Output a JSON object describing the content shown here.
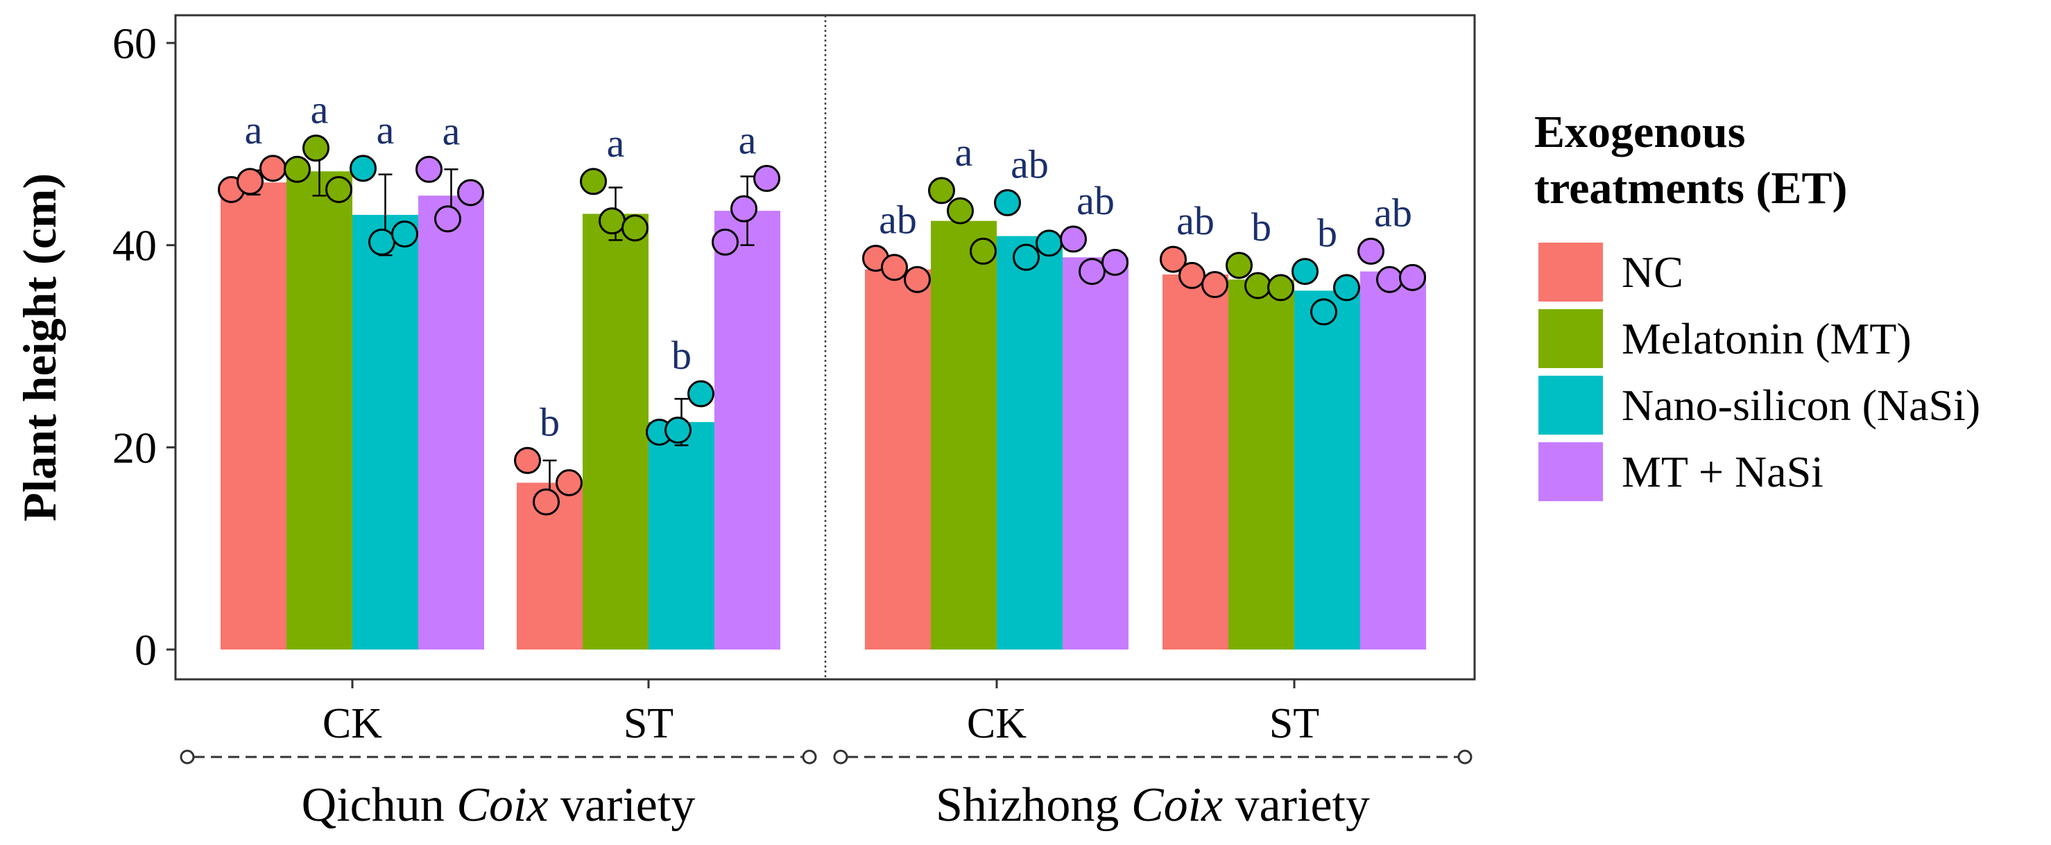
{
  "chart_data": {
    "type": "bar",
    "ylabel": "Plant height (cm)",
    "ylim": [
      0,
      60
    ],
    "yticks": [
      0,
      20,
      40,
      60
    ],
    "varieties": [
      {
        "label_prefix": "Qichun ",
        "label_italic": "Coix",
        "label_suffix": " variety"
      },
      {
        "label_prefix": "Shizhong ",
        "label_italic": "Coix",
        "label_suffix": " variety"
      }
    ],
    "categories": [
      "CK",
      "ST",
      "CK",
      "ST"
    ],
    "legend": {
      "title_line1": "Exogenous",
      "title_line2": "treatments (ET)",
      "placement": "right"
    },
    "series": [
      {
        "name": "NC",
        "color": "#F8766D",
        "values": [
          46.2,
          16.5,
          37.6,
          37.1
        ],
        "errors": [
          1.2,
          2.2,
          0,
          0
        ],
        "labels": [
          "a",
          "b",
          "ab",
          "ab"
        ],
        "points": [
          [
            45.5,
            46.3,
            47.6
          ],
          [
            18.7,
            14.6,
            16.5
          ],
          [
            38.7,
            37.8,
            36.6
          ],
          [
            38.6,
            37.0,
            36.1
          ]
        ]
      },
      {
        "name": "Melatonin (MT)",
        "color": "#7CAE00",
        "values": [
          47.3,
          43.1,
          42.4,
          36.6
        ],
        "errors": [
          2.4,
          2.6,
          0,
          0
        ],
        "labels": [
          "a",
          "a",
          "a",
          "b"
        ],
        "points": [
          [
            47.5,
            49.6,
            45.5
          ],
          [
            46.3,
            42.4,
            41.7
          ],
          [
            45.4,
            43.4,
            39.4
          ],
          [
            38.0,
            36.0,
            35.8
          ]
        ]
      },
      {
        "name": "Nano-silicon (NaSi)",
        "color": "#00BFC4",
        "values": [
          43.0,
          22.5,
          40.9,
          35.5
        ],
        "errors": [
          4.0,
          2.3,
          0,
          0
        ],
        "labels": [
          "a",
          "b",
          "ab",
          "b"
        ],
        "points": [
          [
            47.6,
            40.3,
            41.1
          ],
          [
            21.5,
            21.7,
            25.3
          ],
          [
            44.2,
            38.8,
            40.2
          ],
          [
            37.4,
            33.4,
            35.8
          ]
        ]
      },
      {
        "name": "MT + NaSi",
        "color": "#C77CFF",
        "values": [
          44.9,
          43.4,
          38.8,
          37.4
        ],
        "errors": [
          2.6,
          3.4,
          0,
          0
        ],
        "labels": [
          "a",
          "a",
          "ab",
          "ab"
        ],
        "points": [
          [
            47.5,
            42.6,
            45.2
          ],
          [
            40.3,
            43.6,
            46.6
          ],
          [
            40.6,
            37.4,
            38.3
          ],
          [
            39.4,
            36.6,
            36.8
          ]
        ]
      }
    ]
  }
}
